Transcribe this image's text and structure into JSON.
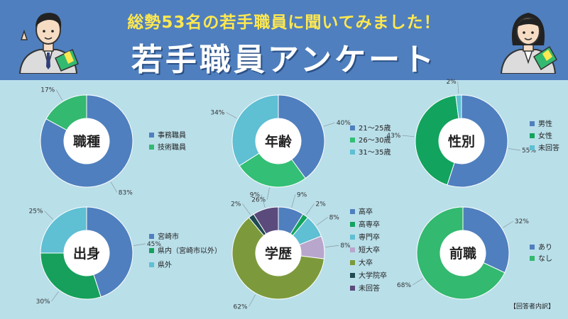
{
  "header": {
    "subtitle": "総勢53名の若手職員に聞いてみました！",
    "title": "若手職員アンケート"
  },
  "footnote": "【回答者内訳】",
  "chart_data": [
    {
      "type": "pie",
      "title": "職種",
      "categories": [
        "事務職員",
        "技術職員"
      ],
      "values": [
        83,
        17
      ],
      "colors": [
        "#4f7fbe",
        "#33b970"
      ],
      "value_labels": [
        "83%",
        "17%"
      ]
    },
    {
      "type": "pie",
      "title": "年齢",
      "categories": [
        "21～25歳",
        "26～30歳",
        "31～35歳"
      ],
      "values": [
        40,
        26,
        34
      ],
      "colors": [
        "#4f7fbe",
        "#33bf75",
        "#5fbfd3"
      ],
      "value_labels": [
        "40%",
        "26%",
        "34%"
      ]
    },
    {
      "type": "pie",
      "title": "性別",
      "categories": [
        "男性",
        "女性",
        "未回答"
      ],
      "values": [
        55,
        43,
        2
      ],
      "colors": [
        "#4f7fbe",
        "#12a35e",
        "#5fbfd3"
      ],
      "value_labels": [
        "55%",
        "43%",
        "2%"
      ]
    },
    {
      "type": "pie",
      "title": "出身",
      "categories": [
        "宮崎市",
        "県内（宮崎市以外）",
        "県外"
      ],
      "values": [
        45,
        30,
        25
      ],
      "colors": [
        "#4f7fbe",
        "#16a05c",
        "#5fbfd3"
      ],
      "value_labels": [
        "45%",
        "30%",
        "25%"
      ]
    },
    {
      "type": "pie",
      "title": "学歴",
      "categories": [
        "高卒",
        "高専卒",
        "専門卒",
        "短大卒",
        "大卒",
        "大学院卒",
        "未回答"
      ],
      "values": [
        9,
        2,
        8,
        8,
        62,
        2,
        9
      ],
      "colors": [
        "#4f7fbe",
        "#12a35e",
        "#5fbfd3",
        "#b9a6cc",
        "#7c9a3c",
        "#1f4a52",
        "#5b4a7c"
      ],
      "value_labels": [
        "9%",
        "2%",
        "8%",
        "8%",
        "62%",
        "2%",
        "9%"
      ]
    },
    {
      "type": "pie",
      "title": "前職",
      "categories": [
        "あり",
        "なし"
      ],
      "values": [
        32,
        68
      ],
      "colors": [
        "#4f7fbe",
        "#33b970"
      ],
      "value_labels": [
        "32%",
        "68%"
      ]
    }
  ]
}
